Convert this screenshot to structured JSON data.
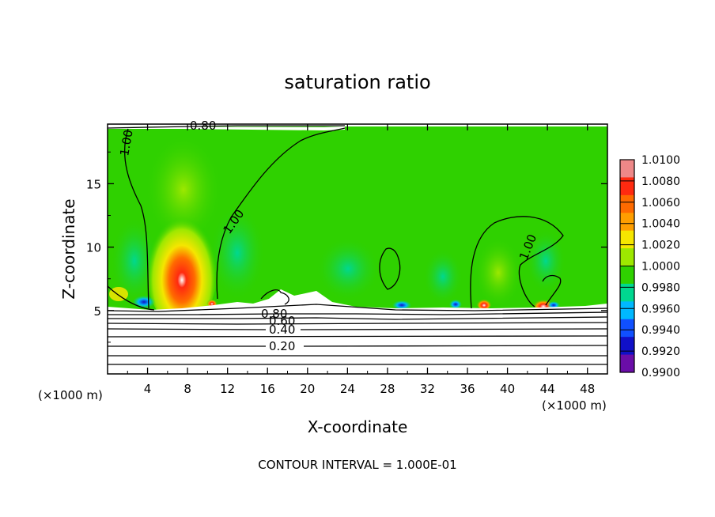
{
  "chart_data": {
    "type": "heatmap",
    "title": "saturation ratio",
    "xlabel": "X-coordinate",
    "ylabel": "Z-coordinate",
    "x_unit_left": "(×1000 m)",
    "x_unit_right": "(×1000 m)",
    "xlim": [
      0,
      50
    ],
    "ylim": [
      0,
      19.7
    ],
    "x_ticks": [
      "4",
      "8",
      "12",
      "16",
      "20",
      "24",
      "28",
      "32",
      "36",
      "40",
      "44",
      "48"
    ],
    "y_ticks": [
      "5",
      "10",
      "15"
    ],
    "footer": "CONTOUR INTERVAL = 1.000E-01",
    "colorbar": {
      "min": 0.99,
      "max": 1.01,
      "labels": [
        "1.0100",
        "1.0080",
        "1.0060",
        "1.0040",
        "1.0020",
        "1.0000",
        "0.9980",
        "0.9960",
        "0.9940",
        "0.9920",
        "0.9900"
      ],
      "colors": [
        "#ee8888",
        "#ff2a10",
        "#ff6a00",
        "#ff9e00",
        "#f5e600",
        "#9de800",
        "#2fd100",
        "#00d890",
        "#00b8ff",
        "#1050ff",
        "#1010c8",
        "#6a0da8"
      ]
    },
    "contour_labels": [
      "0.80",
      "1.00",
      "1.00",
      "1.00",
      "0.80",
      "0.60",
      "0.40",
      "0.20"
    ]
  }
}
